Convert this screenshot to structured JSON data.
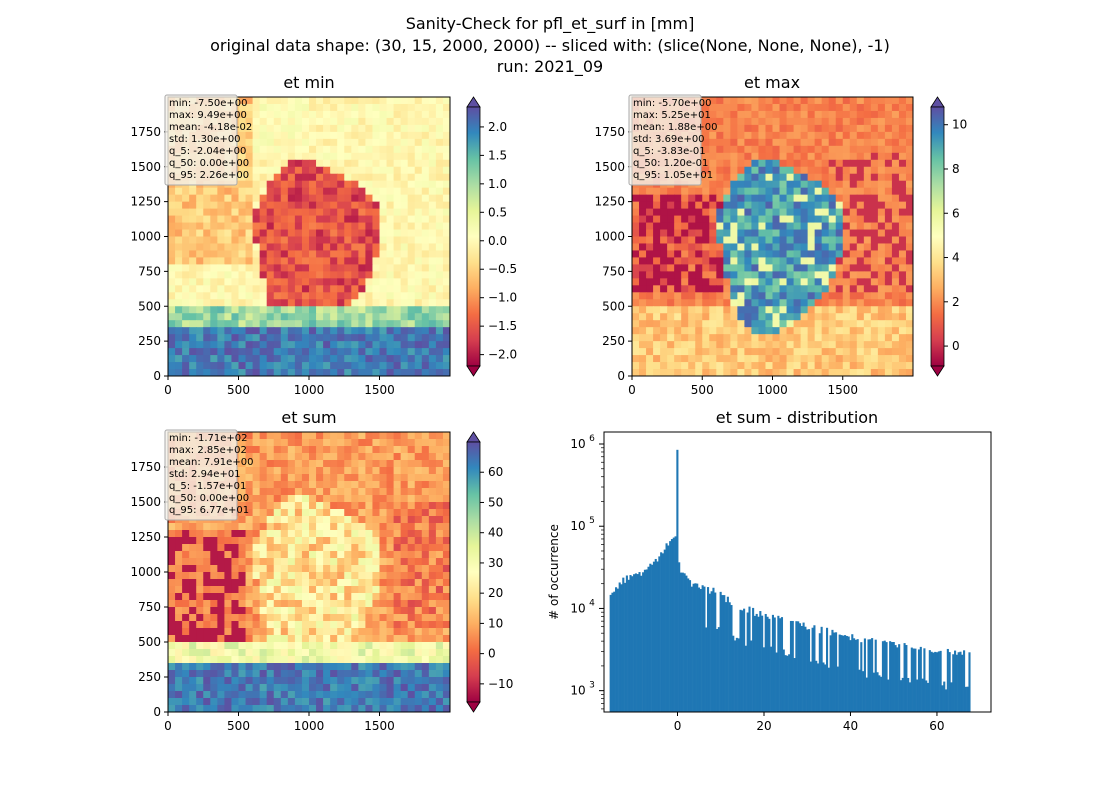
{
  "suptitle": [
    "Sanity-Check for pfl_et_surf in [mm]",
    "original data shape: (30, 15, 2000, 2000) -- sliced with: (slice(None, None, None), -1)",
    "run: 2021_09"
  ],
  "colors": {
    "hist_bar": "#1f77b4",
    "cmap": [
      "#9e0142",
      "#d53e4f",
      "#f46d43",
      "#fdae61",
      "#fee08b",
      "#ffffbf",
      "#e6f598",
      "#abdda4",
      "#66c2a5",
      "#3288bd",
      "#5e4fa2"
    ]
  },
  "chart_data": [
    {
      "type": "heatmap",
      "title": "et min",
      "xlim": [
        0,
        2000
      ],
      "ylim": [
        0,
        2000
      ],
      "xticks": [
        "0",
        "500",
        "1000",
        "1500"
      ],
      "yticks": [
        "0",
        "250",
        "500",
        "750",
        "1000",
        "1250",
        "1500",
        "1750"
      ],
      "colorbar": {
        "vmin": -2.2,
        "vmax": 2.35,
        "ticks": [
          "2.0",
          "1.5",
          "1.0",
          "0.5",
          "0.0",
          "−0.5",
          "−1.0",
          "−1.5",
          "−2.0"
        ],
        "extend": "both"
      },
      "stats": [
        "min: -7.50e+00",
        "max: 9.49e+00",
        "mean: -4.18e-02",
        "std: 1.30e+00",
        "q_5: -2.04e+00",
        "q_50: 0.00e+00",
        "q_95: 2.26e+00"
      ]
    },
    {
      "type": "heatmap",
      "title": "et max",
      "xlim": [
        0,
        2000
      ],
      "ylim": [
        0,
        2000
      ],
      "xticks": [
        "0",
        "500",
        "1000",
        "1500"
      ],
      "yticks": [
        "0",
        "250",
        "500",
        "750",
        "1000",
        "1250",
        "1500",
        "1750"
      ],
      "colorbar": {
        "vmin": -0.9,
        "vmax": 10.8,
        "ticks": [
          "10",
          "8",
          "6",
          "4",
          "2",
          "0"
        ],
        "extend": "both"
      },
      "stats": [
        "min: -5.70e+00",
        "max: 5.25e+01",
        "mean: 1.88e+00",
        "std: 3.69e+00",
        "q_5: -3.83e-01",
        "q_50: 1.20e-01",
        "q_95: 1.05e+01"
      ]
    },
    {
      "type": "heatmap",
      "title": "et sum",
      "xlim": [
        0,
        2000
      ],
      "ylim": [
        0,
        2000
      ],
      "xticks": [
        "0",
        "500",
        "1000",
        "1500"
      ],
      "yticks": [
        "0",
        "250",
        "500",
        "750",
        "1000",
        "1250",
        "1500",
        "1750"
      ],
      "colorbar": {
        "vmin": -16,
        "vmax": 70,
        "ticks": [
          "60",
          "50",
          "40",
          "30",
          "20",
          "10",
          "0",
          "−10"
        ],
        "extend": "both"
      },
      "stats": [
        "min: -1.71e+02",
        "max: 2.85e+02",
        "mean: 7.91e+00",
        "std: 2.94e+01",
        "q_5: -1.57e+01",
        "q_50: 0.00e+00",
        "q_95: 6.77e+01"
      ]
    },
    {
      "type": "bar",
      "title": "et sum - distribution",
      "ylabel": "# of occurrence",
      "xlabel": "",
      "yscale": "log",
      "xlim": [
        -17,
        72.5
      ],
      "ylim": [
        550,
        1400000
      ],
      "xticks": [
        0,
        20,
        40,
        60
      ],
      "yticks": [
        "10^3",
        "10^4",
        "10^5",
        "10^6"
      ],
      "bin_edges": [
        -15.7,
        67.7
      ],
      "bin_count": 200,
      "spike": {
        "x": 0,
        "count": 850000
      },
      "profile": [
        [
          -15.7,
          13000
        ],
        [
          -15.2,
          15500
        ],
        [
          -14.2,
          16500
        ],
        [
          -13.5,
          20000
        ],
        [
          -12.5,
          22000
        ],
        [
          -11.0,
          24000
        ],
        [
          -9.0,
          26000
        ],
        [
          -7.0,
          31000
        ],
        [
          -5.0,
          38000
        ],
        [
          -4.0,
          45000
        ],
        [
          -3.0,
          55000
        ],
        [
          -2.0,
          62000
        ],
        [
          -1.0,
          72000
        ],
        [
          -0.5,
          70000
        ],
        [
          0.5,
          34000
        ],
        [
          1.0,
          27000
        ],
        [
          2.0,
          24000
        ],
        [
          3.0,
          20000
        ],
        [
          4.0,
          19000
        ],
        [
          6.0,
          17000
        ],
        [
          8.0,
          16000
        ],
        [
          10.0,
          14000
        ],
        [
          12.0,
          12000
        ],
        [
          14.0,
          10500
        ],
        [
          16.0,
          9500
        ],
        [
          20.0,
          8000
        ],
        [
          25.0,
          7000
        ],
        [
          30.0,
          5800
        ],
        [
          35.0,
          5000
        ],
        [
          40.0,
          4400
        ],
        [
          45.0,
          4000
        ],
        [
          50.0,
          3600
        ],
        [
          55.0,
          3300
        ],
        [
          60.0,
          3000
        ],
        [
          65.0,
          2900
        ],
        [
          67.7,
          2800
        ]
      ]
    }
  ]
}
